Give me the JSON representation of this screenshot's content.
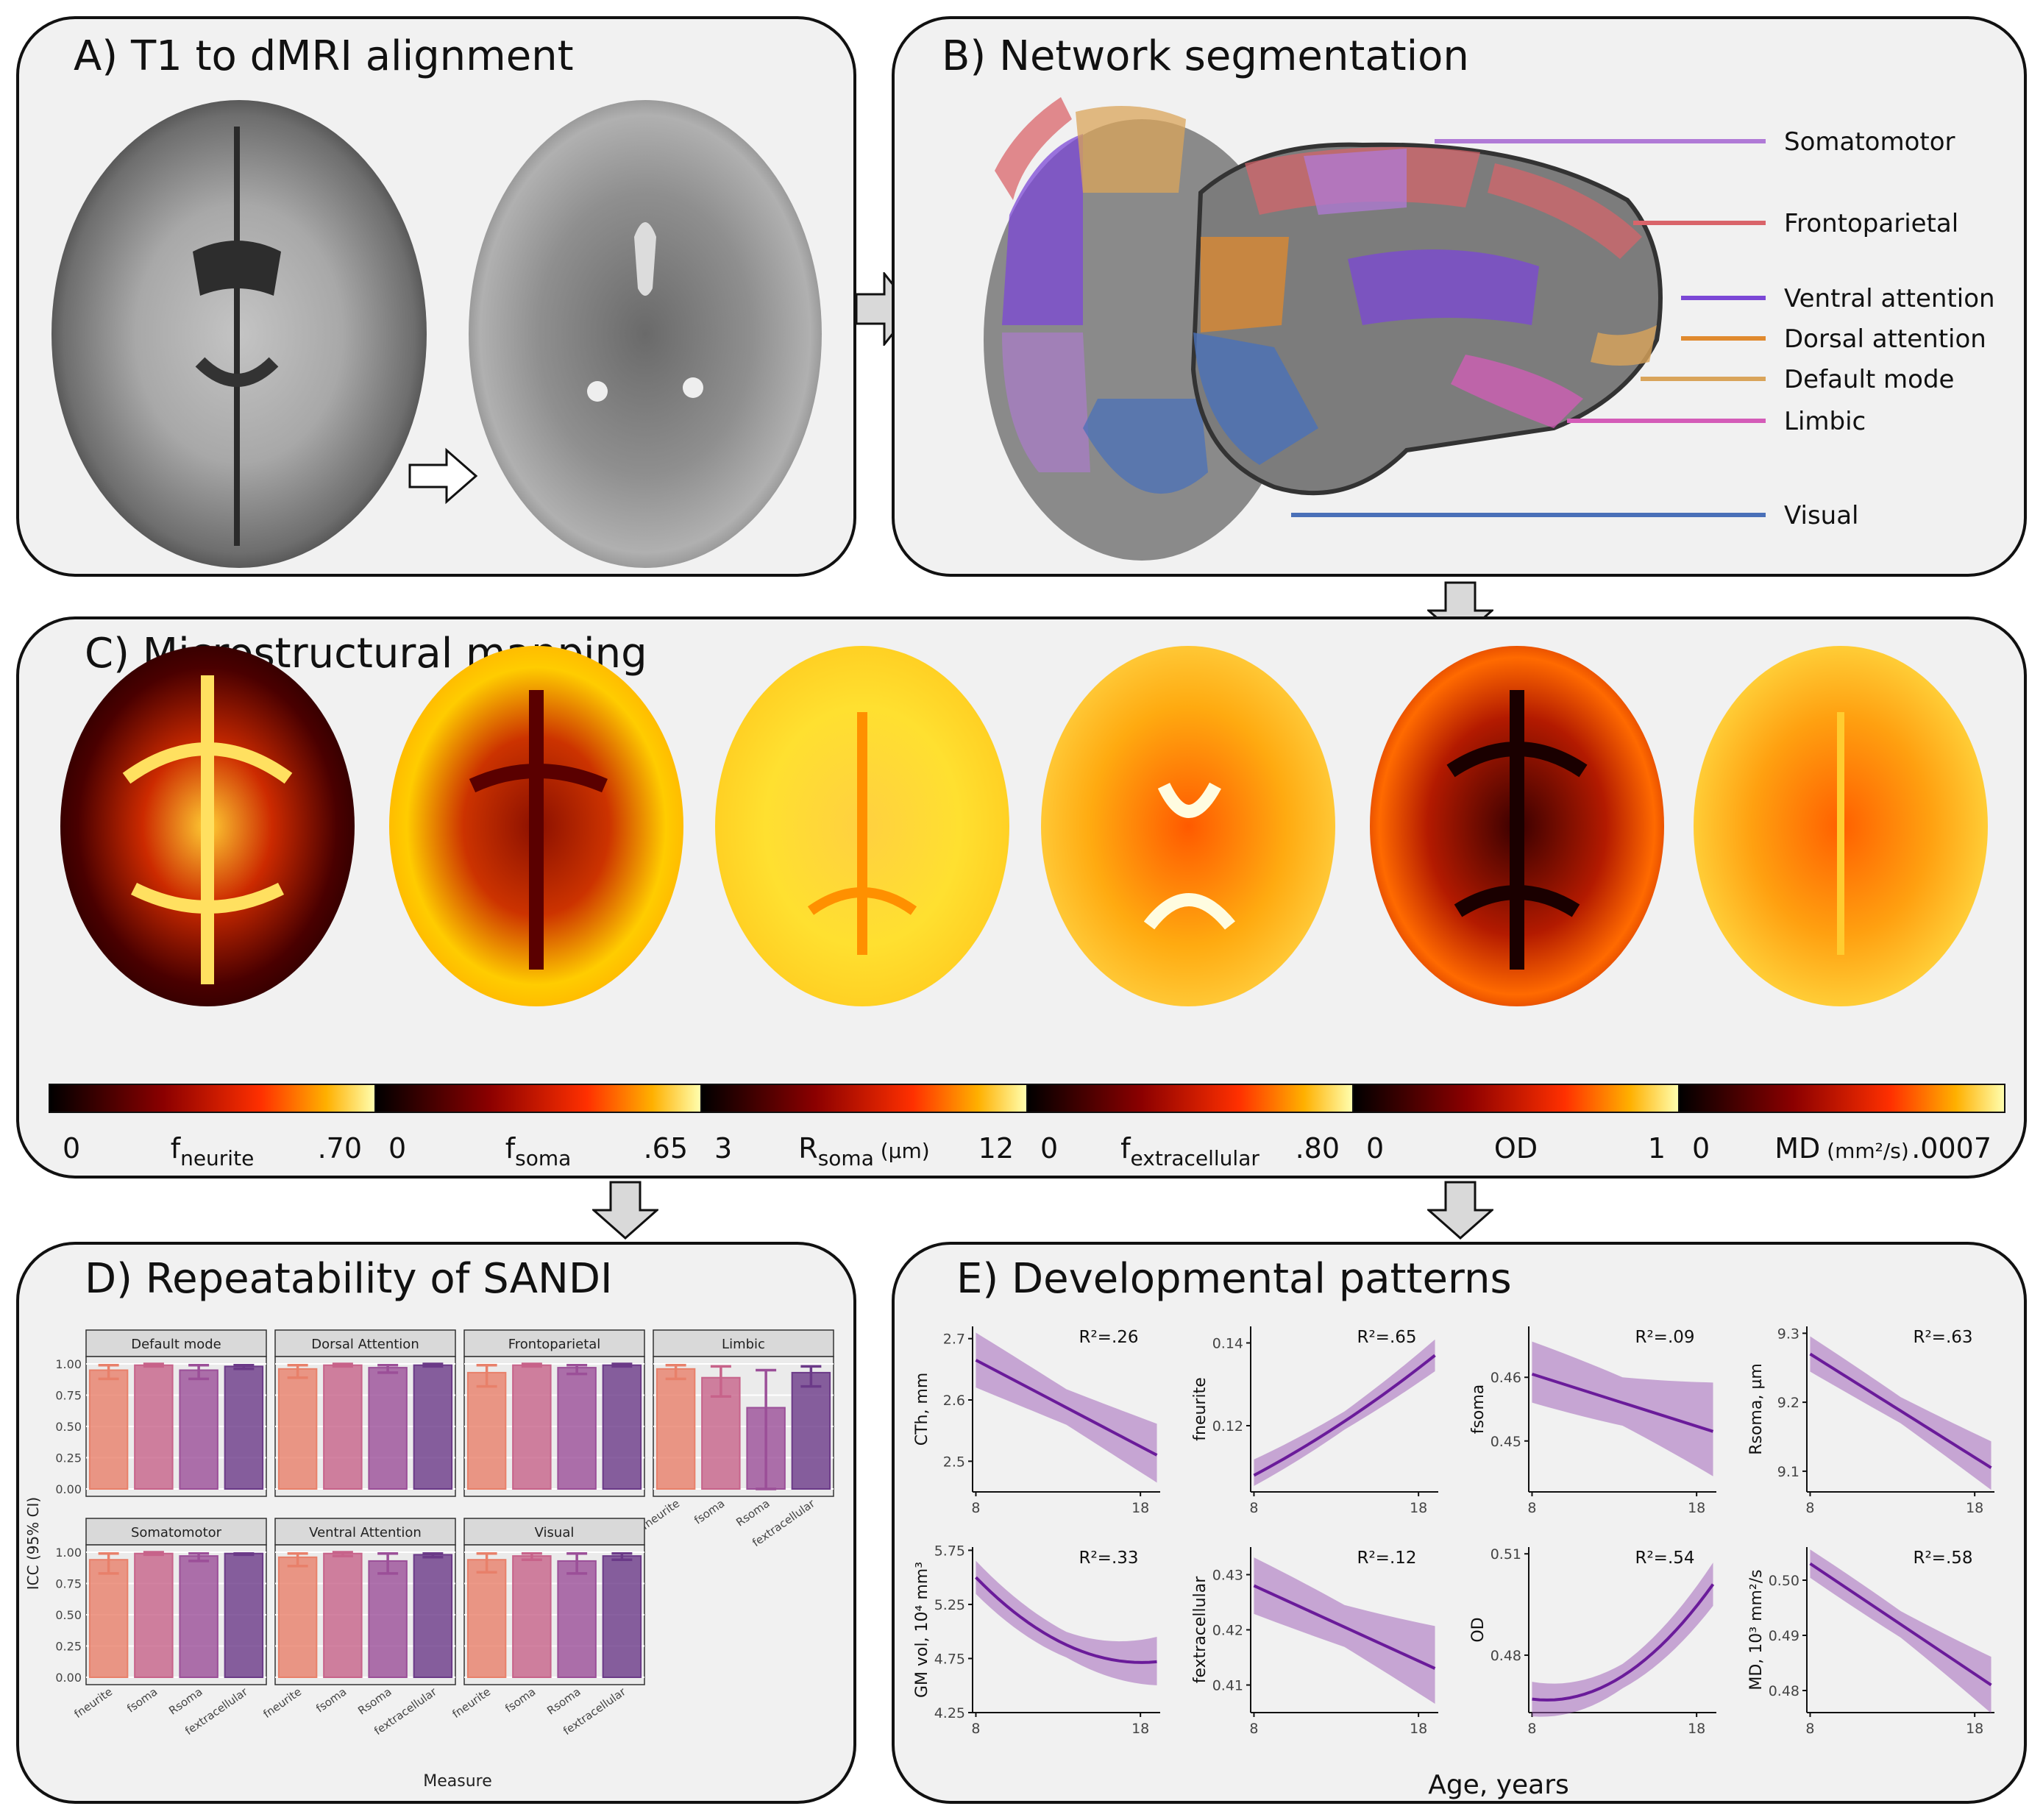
{
  "panels": {
    "a_title": "A) T1 to dMRI alignment",
    "b_title": "B) Network segmentation",
    "c_title": "C) Microstructural mapping",
    "d_title": "D) Repeatability of SANDI",
    "e_title": "E) Developmental patterns"
  },
  "networks": [
    {
      "label": "Somatomotor",
      "color": "#b07ad6"
    },
    {
      "label": "Frontoparietal",
      "color": "#d9646a"
    },
    {
      "label": "Ventral attention",
      "color": "#7b47d6"
    },
    {
      "label": "Dorsal attention",
      "color": "#e08a2e"
    },
    {
      "label": "Default mode",
      "color": "#d9a45a"
    },
    {
      "label": "Limbic",
      "color": "#d45cb8"
    },
    {
      "label": "Visual",
      "color": "#4a70b8"
    }
  ],
  "colorbars": [
    {
      "min": "0",
      "label": "f",
      "sub": "neurite",
      "max": ".70"
    },
    {
      "min": "0",
      "label": "f",
      "sub": "soma",
      "max": ".65"
    },
    {
      "min": "3",
      "label": "R",
      "sub": "soma",
      "unit": " (µm)",
      "max": "12"
    },
    {
      "min": "0",
      "label": "f",
      "sub": "extracellular",
      "max": ".80"
    },
    {
      "min": "0",
      "label": "OD",
      "sub": "",
      "max": "1"
    },
    {
      "min": "0",
      "label": "MD",
      "sub": "",
      "unit": " (mm²/s)",
      "max": ".0007"
    }
  ],
  "icc": {
    "ylabel": "ICC (95% CI)",
    "xlabel": "Measure",
    "measures": [
      "fneurite",
      "fsoma",
      "Rsoma",
      "fextracellular"
    ],
    "yticks": [
      "1.00",
      "0.75",
      "0.50",
      "0.25",
      "0.00"
    ],
    "bar_colors": [
      "#e8806a",
      "#c7638a",
      "#9b4f98",
      "#6b3a88"
    ],
    "facets": [
      {
        "name": "Default mode",
        "values": [
          0.95,
          0.99,
          0.95,
          0.98
        ],
        "lo": [
          0.88,
          0.98,
          0.88,
          0.96
        ],
        "hi": [
          0.99,
          1.0,
          0.99,
          0.99
        ]
      },
      {
        "name": "Dorsal Attention",
        "values": [
          0.96,
          0.99,
          0.97,
          0.99
        ],
        "lo": [
          0.89,
          0.98,
          0.93,
          0.98
        ],
        "hi": [
          0.99,
          1.0,
          0.99,
          1.0
        ]
      },
      {
        "name": "Frontoparietal",
        "values": [
          0.93,
          0.99,
          0.97,
          0.99
        ],
        "lo": [
          0.82,
          0.98,
          0.92,
          0.98
        ],
        "hi": [
          0.99,
          1.0,
          0.99,
          1.0
        ]
      },
      {
        "name": "Limbic",
        "values": [
          0.96,
          0.89,
          0.65,
          0.93
        ],
        "lo": [
          0.88,
          0.74,
          0.0,
          0.82
        ],
        "hi": [
          0.99,
          0.98,
          0.95,
          0.98
        ]
      },
      {
        "name": "Somatomotor",
        "values": [
          0.94,
          0.99,
          0.97,
          0.99
        ],
        "lo": [
          0.83,
          0.98,
          0.93,
          0.98
        ],
        "hi": [
          0.99,
          1.0,
          0.99,
          0.99
        ]
      },
      {
        "name": "Ventral Attention",
        "values": [
          0.96,
          0.99,
          0.93,
          0.98
        ],
        "lo": [
          0.89,
          0.97,
          0.83,
          0.96
        ],
        "hi": [
          0.99,
          1.0,
          0.99,
          0.99
        ]
      },
      {
        "name": "Visual",
        "values": [
          0.94,
          0.97,
          0.93,
          0.97
        ],
        "lo": [
          0.84,
          0.94,
          0.83,
          0.94
        ],
        "hi": [
          0.99,
          0.99,
          0.99,
          0.99
        ]
      }
    ]
  },
  "dev": {
    "xlabel": "Age, years",
    "xticks": [
      8,
      18
    ],
    "xrange": [
      7.8,
      19.2
    ],
    "plots": [
      {
        "ylabel": "CTh, mm",
        "r2": "R²=.26",
        "yrange": [
          2.45,
          2.72
        ],
        "yticks": [
          "2.7",
          "2.6",
          "2.5"
        ],
        "ytickvals": [
          2.7,
          2.6,
          2.5
        ],
        "x": [
          8,
          19
        ],
        "fit": [
          2.665,
          2.51
        ],
        "lo": [
          2.63,
          2.475
        ],
        "hi": [
          2.7,
          2.55
        ],
        "curve": 0
      },
      {
        "ylabel": "fneurite",
        "r2": "R²=.65",
        "yrange": [
          0.104,
          0.144
        ],
        "yticks": [
          "0.14",
          "0.12"
        ],
        "ytickvals": [
          0.14,
          0.12
        ],
        "x": [
          8,
          19
        ],
        "fit": [
          0.108,
          0.137
        ],
        "lo": [
          0.106,
          0.134
        ],
        "hi": [
          0.111,
          0.14
        ],
        "curve": 0.1
      },
      {
        "ylabel": "fsoma",
        "r2": "R²=.09",
        "yrange": [
          0.442,
          0.468
        ],
        "yticks": [
          "0.46",
          "0.45"
        ],
        "ytickvals": [
          0.46,
          0.45
        ],
        "x": [
          8,
          19
        ],
        "fit": [
          0.4605,
          0.4515
        ],
        "lo": [
          0.457,
          0.446
        ],
        "hi": [
          0.4645,
          0.4575
        ],
        "curve": 0
      },
      {
        "ylabel": "Rsoma, µm",
        "r2": "R²=.63",
        "yrange": [
          9.07,
          9.31
        ],
        "yticks": [
          "9.3",
          "9.2",
          "9.1"
        ],
        "ytickvals": [
          9.3,
          9.2,
          9.1
        ],
        "x": [
          8,
          19
        ],
        "fit": [
          9.27,
          9.105
        ],
        "lo": [
          9.25,
          9.08
        ],
        "hi": [
          9.29,
          9.135
        ],
        "curve": 0
      },
      {
        "ylabel": "GM vol, 10⁴ mm³",
        "r2": "R²=.33",
        "yrange": [
          4.25,
          5.78
        ],
        "yticks": [
          "5.75",
          "5.25",
          "4.75",
          "4.25"
        ],
        "ytickvals": [
          5.75,
          5.25,
          4.75,
          4.25
        ],
        "x": [
          8,
          19
        ],
        "fit": [
          5.5,
          4.72
        ],
        "lo": [
          5.38,
          4.55
        ],
        "hi": [
          5.62,
          4.9
        ],
        "curve": -0.6
      },
      {
        "ylabel": "fextracellular",
        "r2": "R²=.12",
        "yrange": [
          0.405,
          0.435
        ],
        "yticks": [
          "0.43",
          "0.42",
          "0.41"
        ],
        "ytickvals": [
          0.43,
          0.42,
          0.41
        ],
        "x": [
          8,
          19
        ],
        "fit": [
          0.428,
          0.413
        ],
        "lo": [
          0.424,
          0.408
        ],
        "hi": [
          0.432,
          0.419
        ],
        "curve": 0
      },
      {
        "ylabel": "OD",
        "r2": "R²=.54",
        "yrange": [
          0.463,
          0.512
        ],
        "yticks": [
          "0.51",
          "0.48"
        ],
        "ytickvals": [
          0.51,
          0.48
        ],
        "x": [
          8,
          19
        ],
        "fit": [
          0.467,
          0.501
        ],
        "lo": [
          0.463,
          0.496
        ],
        "hi": [
          0.471,
          0.506
        ],
        "curve": 0.6
      },
      {
        "ylabel": "MD, 10³ mm²/s",
        "r2": "R²=.58",
        "yrange": [
          0.476,
          0.506
        ],
        "yticks": [
          "0.50",
          "0.49",
          "0.48"
        ],
        "ytickvals": [
          0.5,
          0.49,
          0.48
        ],
        "x": [
          8,
          19
        ],
        "fit": [
          0.503,
          0.481
        ],
        "lo": [
          0.501,
          0.477
        ],
        "hi": [
          0.505,
          0.485
        ],
        "curve": 0
      }
    ]
  }
}
